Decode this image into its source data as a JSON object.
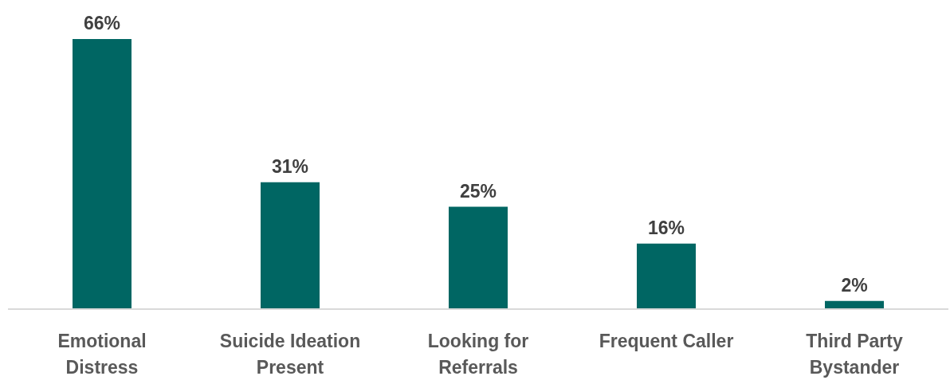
{
  "chart_data": {
    "type": "bar",
    "categories": [
      "Emotional\nDistress",
      "Suicide Ideation\nPresent",
      "Looking for\nReferrals",
      "Frequent Caller",
      "Third Party\nBystander"
    ],
    "values": [
      66,
      31,
      25,
      16,
      2
    ],
    "value_labels": [
      "66%",
      "31%",
      "25%",
      "16%",
      "2%"
    ],
    "color": "#006663",
    "grid": false,
    "legend": false
  }
}
